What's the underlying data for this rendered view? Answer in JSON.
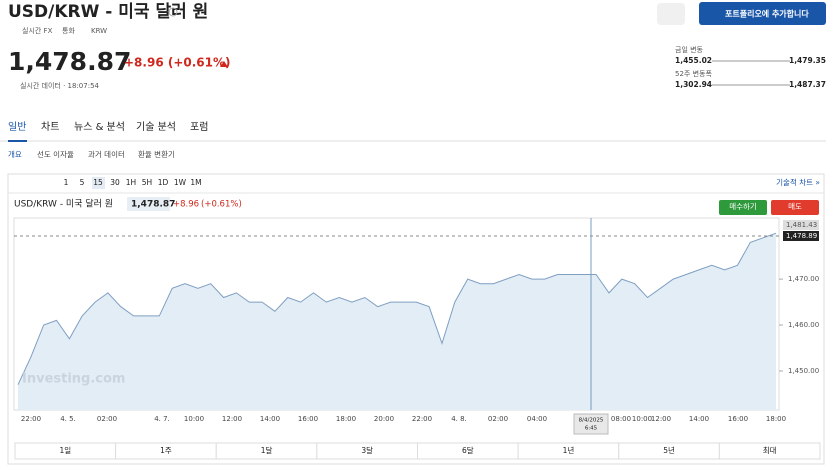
{
  "header": {
    "title": "USD/KRW - 미국 달러 원",
    "meta": [
      "실시간 FX",
      "통화",
      "KRW"
    ],
    "price": "1,478.87",
    "change": "+8.96 (+0.61%)",
    "time": "실시간 데이터 · 18:07:54",
    "button": "포트폴리오에 추가합니다"
  },
  "ranges": [
    {
      "label": "금일 변동",
      "low": "1,455.02",
      "high": "1,479.35"
    },
    {
      "label": "52주 변동폭",
      "low": "1,302.94",
      "high": "1,487.37"
    }
  ],
  "tabs": [
    "일반",
    "차트",
    "뉴스 & 분석",
    "기술 분석",
    "포럼"
  ],
  "subtabs": [
    "개요",
    "선도 이자율",
    "과거 데이터",
    "환율 변환기"
  ],
  "toolbar": {
    "intervals": [
      "1",
      "5",
      "15",
      "30",
      "1H",
      "5H",
      "1D",
      "1W",
      "1M"
    ],
    "link": "기술적 차트 »"
  },
  "chart": {
    "type": "area",
    "title": "USD/KRW - 미국 달러 원",
    "price": "1,478.87",
    "change": "+8.96",
    "percent": "(+0.61%)",
    "buy": "매수하기",
    "sell": "매도",
    "ylim": [
      1441.5,
      1482
    ],
    "yticks": [
      {
        "value": 1450,
        "label": "1,450.00"
      },
      {
        "value": 1460,
        "label": "1,460.00"
      },
      {
        "value": 1470,
        "label": "1,470.00"
      }
    ],
    "price_tags": [
      "1,481.43",
      "1,478.89"
    ],
    "xtick_labels": [
      "22:00",
      "4. 5.",
      "02:00",
      "4. 7.",
      "10:00",
      "12:00",
      "14:00",
      "16:00",
      "18:00",
      "20:00",
      "22:00",
      "4. 8.",
      "02:00",
      "04:00",
      "08:00",
      "10:00",
      "12:00",
      "14:00",
      "16:00",
      "18:00"
    ],
    "crosshair_label": [
      "8/4/2025",
      "6:45"
    ],
    "watermark": "Investing.com",
    "color": "#7f9fc2",
    "values": [
      1447,
      1453,
      1460,
      1461,
      1457,
      1462,
      1465,
      1467,
      1464,
      1462,
      1462,
      1462,
      1468,
      1469,
      1468,
      1469,
      1466,
      1467,
      1465,
      1465,
      1463,
      1466,
      1465,
      1467,
      1465,
      1466,
      1465,
      1466,
      1464,
      1465,
      1465,
      1465,
      1464,
      1456,
      1465,
      1470,
      1469,
      1469,
      1470,
      1471,
      1470,
      1470,
      1471,
      1471,
      1471,
      1471,
      1467,
      1470,
      1469,
      1466,
      1468,
      1470,
      1471,
      1472,
      1473,
      1472,
      1473,
      1478,
      1479,
      1480
    ]
  },
  "periods": [
    "1일",
    "1주",
    "1달",
    "3달",
    "6달",
    "1년",
    "5년",
    "최대"
  ]
}
